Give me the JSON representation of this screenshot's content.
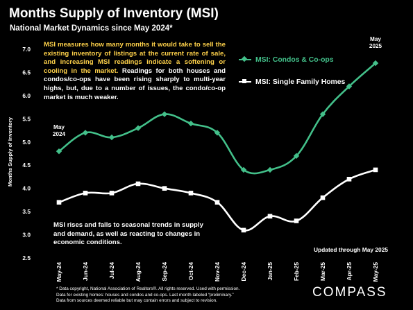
{
  "header": {
    "title": "Months Supply of Inventory (MSI)",
    "subtitle": "National Market Dynamics since May 2024*"
  },
  "description": {
    "highlight": "MSI measures how many months it would take to sell the existing inventory of listings at the current rate of sale, and increasing MSI readings indicate a softening or cooling in the market.",
    "body": " Readings for both houses and condos/co-ops have been rising sharply to multi-year highs, but, due to a number of issues, the condo/co-op market is much weaker."
  },
  "note": "MSI rises and falls to seasonal trends in supply and demand, as well as reacting to changes in economic conditions.",
  "updated": "Updated through May 2025",
  "footnote": [
    "* Data copyright, National Association of Realtors®. All rights reserved. Used with permission.",
    "Data for existing homes: houses and condos and co-ops. Last month labeled “preliminary.”",
    "Data from sources deemed reliable but may contain errors and subject to revision."
  ],
  "logo": "COMPASS",
  "colors": {
    "condo": "#43c08a",
    "sfh": "#ffffff",
    "highlight": "#ffd24a",
    "background": "#000000"
  },
  "chart_data": {
    "type": "line",
    "title": "Months Supply of Inventory (MSI)",
    "subtitle": "National Market Dynamics since May 2024*",
    "ylabel": "Months Supply of Inventory",
    "xlabel": "",
    "ylim": [
      2.5,
      7.0
    ],
    "yticks": [
      "2.5",
      "3.0",
      "3.5",
      "4.0",
      "4.5",
      "5.0",
      "5.5",
      "6.0",
      "6.5",
      "7.0"
    ],
    "categories": [
      "May-24",
      "Jun-24",
      "Jul-24",
      "Aug-24",
      "Sep-24",
      "Oct-24",
      "Nov-24",
      "Dec-24",
      "Jan-25",
      "Feb-25",
      "Mar-25",
      "Apr-25",
      "May-25"
    ],
    "grid": false,
    "legend_position": "top-right",
    "series": [
      {
        "name": "MSI:  Condos & Co-ops",
        "marker": "diamond",
        "color": "#43c08a",
        "values": [
          4.8,
          5.2,
          5.1,
          5.3,
          5.6,
          5.4,
          5.2,
          4.4,
          4.4,
          4.7,
          5.6,
          6.2,
          6.7
        ]
      },
      {
        "name": "MSI:  Single Family Homes",
        "marker": "square",
        "color": "#ffffff",
        "values": [
          3.7,
          3.9,
          3.9,
          4.1,
          4.0,
          3.9,
          3.7,
          3.1,
          3.4,
          3.3,
          3.8,
          4.2,
          4.4
        ]
      }
    ],
    "annotations": [
      {
        "lines": [
          "May",
          "2024"
        ],
        "category": "May-24",
        "value": 5.13
      },
      {
        "lines": [
          "May",
          "2025"
        ],
        "category": "May-25",
        "value": 7.03
      }
    ]
  }
}
